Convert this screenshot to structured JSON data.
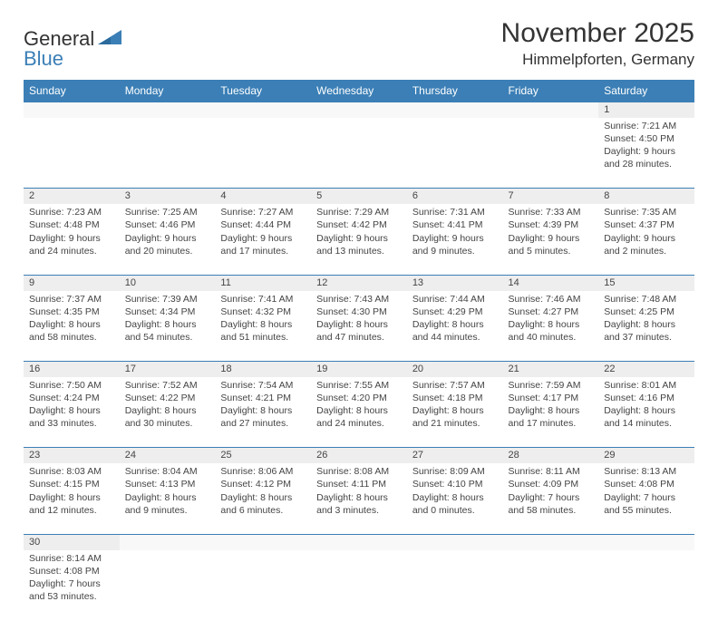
{
  "logo": {
    "part1": "General",
    "part2": "Blue"
  },
  "title": "November 2025",
  "location": "Himmelpforten, Germany",
  "colors": {
    "brand_blue": "#3b7fb6",
    "header_bg": "#3b7fb6",
    "header_fg": "#ffffff",
    "daynum_bg": "#eeeeee",
    "text": "#333333",
    "border": "#3b7fb6"
  },
  "weekdays": [
    "Sunday",
    "Monday",
    "Tuesday",
    "Wednesday",
    "Thursday",
    "Friday",
    "Saturday"
  ],
  "weeks": [
    [
      null,
      null,
      null,
      null,
      null,
      null,
      {
        "n": "1",
        "sr": "7:21 AM",
        "ss": "4:50 PM",
        "dl": "9 hours and 28 minutes."
      }
    ],
    [
      {
        "n": "2",
        "sr": "7:23 AM",
        "ss": "4:48 PM",
        "dl": "9 hours and 24 minutes."
      },
      {
        "n": "3",
        "sr": "7:25 AM",
        "ss": "4:46 PM",
        "dl": "9 hours and 20 minutes."
      },
      {
        "n": "4",
        "sr": "7:27 AM",
        "ss": "4:44 PM",
        "dl": "9 hours and 17 minutes."
      },
      {
        "n": "5",
        "sr": "7:29 AM",
        "ss": "4:42 PM",
        "dl": "9 hours and 13 minutes."
      },
      {
        "n": "6",
        "sr": "7:31 AM",
        "ss": "4:41 PM",
        "dl": "9 hours and 9 minutes."
      },
      {
        "n": "7",
        "sr": "7:33 AM",
        "ss": "4:39 PM",
        "dl": "9 hours and 5 minutes."
      },
      {
        "n": "8",
        "sr": "7:35 AM",
        "ss": "4:37 PM",
        "dl": "9 hours and 2 minutes."
      }
    ],
    [
      {
        "n": "9",
        "sr": "7:37 AM",
        "ss": "4:35 PM",
        "dl": "8 hours and 58 minutes."
      },
      {
        "n": "10",
        "sr": "7:39 AM",
        "ss": "4:34 PM",
        "dl": "8 hours and 54 minutes."
      },
      {
        "n": "11",
        "sr": "7:41 AM",
        "ss": "4:32 PM",
        "dl": "8 hours and 51 minutes."
      },
      {
        "n": "12",
        "sr": "7:43 AM",
        "ss": "4:30 PM",
        "dl": "8 hours and 47 minutes."
      },
      {
        "n": "13",
        "sr": "7:44 AM",
        "ss": "4:29 PM",
        "dl": "8 hours and 44 minutes."
      },
      {
        "n": "14",
        "sr": "7:46 AM",
        "ss": "4:27 PM",
        "dl": "8 hours and 40 minutes."
      },
      {
        "n": "15",
        "sr": "7:48 AM",
        "ss": "4:25 PM",
        "dl": "8 hours and 37 minutes."
      }
    ],
    [
      {
        "n": "16",
        "sr": "7:50 AM",
        "ss": "4:24 PM",
        "dl": "8 hours and 33 minutes."
      },
      {
        "n": "17",
        "sr": "7:52 AM",
        "ss": "4:22 PM",
        "dl": "8 hours and 30 minutes."
      },
      {
        "n": "18",
        "sr": "7:54 AM",
        "ss": "4:21 PM",
        "dl": "8 hours and 27 minutes."
      },
      {
        "n": "19",
        "sr": "7:55 AM",
        "ss": "4:20 PM",
        "dl": "8 hours and 24 minutes."
      },
      {
        "n": "20",
        "sr": "7:57 AM",
        "ss": "4:18 PM",
        "dl": "8 hours and 21 minutes."
      },
      {
        "n": "21",
        "sr": "7:59 AM",
        "ss": "4:17 PM",
        "dl": "8 hours and 17 minutes."
      },
      {
        "n": "22",
        "sr": "8:01 AM",
        "ss": "4:16 PM",
        "dl": "8 hours and 14 minutes."
      }
    ],
    [
      {
        "n": "23",
        "sr": "8:03 AM",
        "ss": "4:15 PM",
        "dl": "8 hours and 12 minutes."
      },
      {
        "n": "24",
        "sr": "8:04 AM",
        "ss": "4:13 PM",
        "dl": "8 hours and 9 minutes."
      },
      {
        "n": "25",
        "sr": "8:06 AM",
        "ss": "4:12 PM",
        "dl": "8 hours and 6 minutes."
      },
      {
        "n": "26",
        "sr": "8:08 AM",
        "ss": "4:11 PM",
        "dl": "8 hours and 3 minutes."
      },
      {
        "n": "27",
        "sr": "8:09 AM",
        "ss": "4:10 PM",
        "dl": "8 hours and 0 minutes."
      },
      {
        "n": "28",
        "sr": "8:11 AM",
        "ss": "4:09 PM",
        "dl": "7 hours and 58 minutes."
      },
      {
        "n": "29",
        "sr": "8:13 AM",
        "ss": "4:08 PM",
        "dl": "7 hours and 55 minutes."
      }
    ],
    [
      {
        "n": "30",
        "sr": "8:14 AM",
        "ss": "4:08 PM",
        "dl": "7 hours and 53 minutes."
      },
      null,
      null,
      null,
      null,
      null,
      null
    ]
  ],
  "labels": {
    "sunrise": "Sunrise:",
    "sunset": "Sunset:",
    "daylight": "Daylight:"
  }
}
